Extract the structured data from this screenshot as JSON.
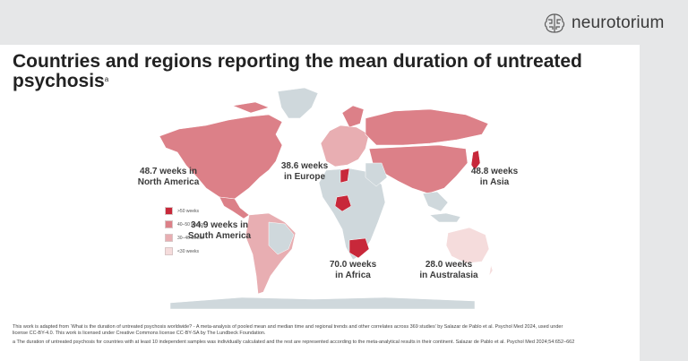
{
  "brand": {
    "name": "neurotorium"
  },
  "title": {
    "text": "Countries and regions reporting the mean duration of untreated psychosis",
    "superscript": "a"
  },
  "regions": {
    "north_america": {
      "value": "48.7 weeks in",
      "region": "North America"
    },
    "europe": {
      "value": "38.6 weeks",
      "region": "in Europe"
    },
    "asia": {
      "value": "48.8 weeks",
      "region": "in Asia"
    },
    "south_america": {
      "value": "34.9 weeks in",
      "region": "South America"
    },
    "africa": {
      "value": "70.0 weeks",
      "region": "in Africa"
    },
    "australasia": {
      "value": "28.0 weeks",
      "region": "in Australasia"
    }
  },
  "legend": {
    "items": [
      {
        "label": ">50 weeks",
        "color": "#c8283a"
      },
      {
        "label": "40–50 weeks",
        "color": "#dc8088"
      },
      {
        "label": "30–40 weeks",
        "color": "#e8aeb2"
      },
      {
        "label": "<30 weeks",
        "color": "#f5dcdc"
      }
    ]
  },
  "colors": {
    "no_data": "#cfd8dc",
    "ocean": "#ffffff"
  },
  "footer": {
    "line1": "This work is adapted from ‘What is the duration of untreated psychosis worldwide? - A meta-analysis of pooled mean and median time and regional trends and other correlates across 369 studies’ by Salazar de Pablo et al. Psychol Med 2024, used under",
    "line2": "license CC-BY-4.0. This work is licensed under Creative Commons license CC-BY-SA by The Lundbeck Foundation.",
    "line3": "a The duration of untreated psychosis for countries with at least 10 independent samples was individually calculated and the rest are represented according to the meta-analytical results in their continent. Salazar de Pablo et al. Psychol Med 2024;54:652–662"
  }
}
